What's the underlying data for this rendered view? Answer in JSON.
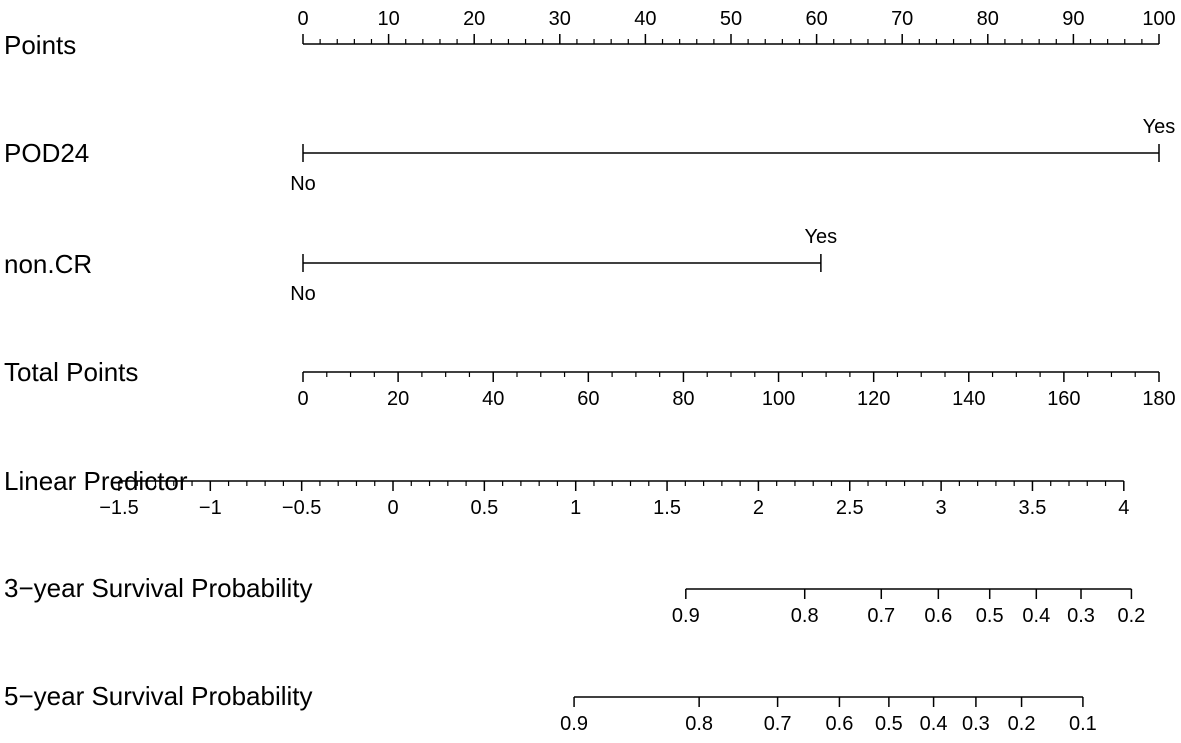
{
  "chart_data": {
    "type": "nomogram",
    "rows": [
      {
        "id": "points",
        "label": "Points",
        "kind": "axis",
        "ticks": [
          "0",
          "10",
          "20",
          "30",
          "40",
          "50",
          "60",
          "70",
          "80",
          "90",
          "100"
        ],
        "tick_values": [
          0,
          10,
          20,
          30,
          40,
          50,
          60,
          70,
          80,
          90,
          100
        ],
        "range": [
          0,
          100
        ],
        "minor_step": 2
      },
      {
        "id": "pod24",
        "label": "POD24",
        "kind": "categorical",
        "levels": [
          {
            "label": "No",
            "points": 0
          },
          {
            "label": "Yes",
            "points": 100
          }
        ]
      },
      {
        "id": "non-cr",
        "label": "non.CR",
        "kind": "categorical",
        "levels": [
          {
            "label": "No",
            "points": 0
          },
          {
            "label": "Yes",
            "points": 60.5
          }
        ]
      },
      {
        "id": "total-points",
        "label": "Total Points",
        "kind": "axis",
        "ticks": [
          "0",
          "20",
          "40",
          "60",
          "80",
          "100",
          "120",
          "140",
          "160",
          "180"
        ],
        "tick_values": [
          0,
          20,
          40,
          60,
          80,
          100,
          120,
          140,
          160,
          180
        ],
        "range": [
          0,
          180
        ],
        "minor_step": 5
      },
      {
        "id": "linear-predictor",
        "label": "Linear Predictor",
        "kind": "axis",
        "ticks": [
          "−1.5",
          "−1",
          "−0.5",
          "0",
          "0.5",
          "1",
          "1.5",
          "2",
          "2.5",
          "3",
          "3.5",
          "4"
        ],
        "tick_values": [
          -1.5,
          -1,
          -0.5,
          0,
          0.5,
          1,
          1.5,
          2,
          2.5,
          3,
          3.5,
          4
        ],
        "range": [
          -1.5,
          4
        ],
        "minor_step": 0.1,
        "total_points_at": [
          -38.7,
          172.6
        ]
      },
      {
        "id": "survival-3yr",
        "label": "3−year Survival Probability",
        "kind": "axis",
        "ticks": [
          "0.9",
          "0.8",
          "0.7",
          "0.6",
          "0.5",
          "0.4",
          "0.3",
          "0.2"
        ],
        "tick_values": [
          0.9,
          0.8,
          0.7,
          0.6,
          0.5,
          0.4,
          0.3,
          0.2
        ],
        "total_points_at": [
          80.5,
          105.5,
          121.6,
          133.6,
          144.4,
          154.2,
          163.6,
          174.2
        ]
      },
      {
        "id": "survival-5yr",
        "label": "5−year Survival Probability",
        "kind": "axis",
        "ticks": [
          "0.9",
          "0.8",
          "0.7",
          "0.6",
          "0.5",
          "0.4",
          "0.3",
          "0.2",
          "0.1"
        ],
        "tick_values": [
          0.9,
          0.8,
          0.7,
          0.6,
          0.5,
          0.4,
          0.3,
          0.2,
          0.1
        ],
        "total_points_at": [
          57.0,
          83.3,
          99.8,
          112.8,
          123.2,
          132.6,
          141.5,
          151.1,
          164.0
        ]
      }
    ]
  }
}
